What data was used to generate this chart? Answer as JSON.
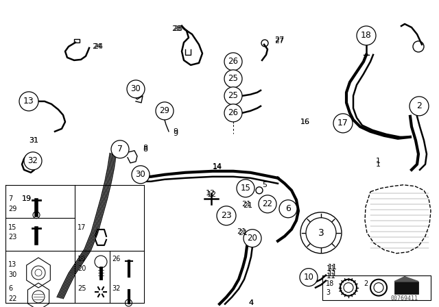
{
  "bg_color": "#ffffff",
  "line_color": "#000000",
  "fig_width": 6.4,
  "fig_height": 4.48,
  "dpi": 100,
  "watermark": "00769411"
}
